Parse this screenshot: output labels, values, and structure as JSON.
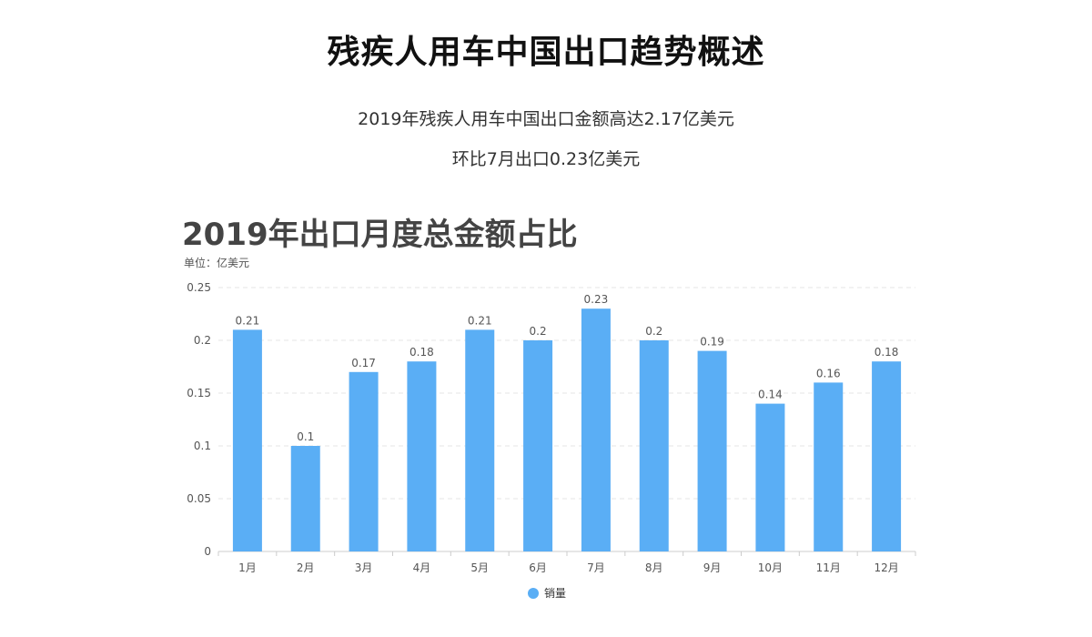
{
  "header": {
    "title": "残疾人用车中国出口趋势概述",
    "summary_line1": "2019年残疾人用车中国出口金额高达2.17亿美元",
    "summary_line2": "环比7月出口0.23亿美元"
  },
  "chart_data": {
    "type": "bar",
    "title": "2019年出口月度总金额占比",
    "unit_label": "单位：亿美元",
    "categories": [
      "1月",
      "2月",
      "3月",
      "4月",
      "5月",
      "6月",
      "7月",
      "8月",
      "9月",
      "10月",
      "11月",
      "12月"
    ],
    "series": [
      {
        "name": "销量",
        "values": [
          0.21,
          0.1,
          0.17,
          0.18,
          0.21,
          0.2,
          0.23,
          0.2,
          0.19,
          0.14,
          0.16,
          0.18
        ],
        "color": "#5aaef5"
      }
    ],
    "y_ticks": [
      "0",
      "0.05",
      "0.1",
      "0.15",
      "0.2",
      "0.25"
    ],
    "ylim": [
      0,
      0.25
    ],
    "grid": true,
    "legend_position": "bottom-center"
  }
}
